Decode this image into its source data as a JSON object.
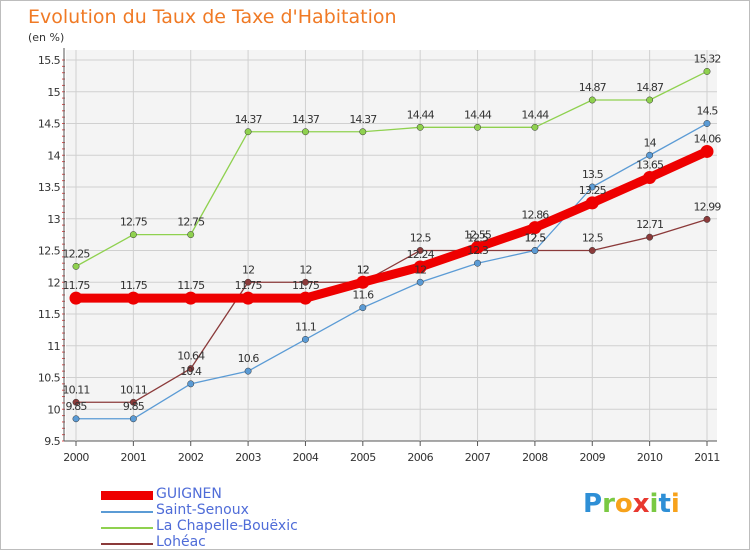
{
  "chart_data": {
    "type": "line",
    "title": "Evolution du Taux de Taxe d'Habitation",
    "subtitle": "(en %)",
    "x": [
      "2000",
      "2001",
      "2002",
      "2003",
      "2004",
      "2005",
      "2006",
      "2007",
      "2008",
      "2009",
      "2010",
      "2011"
    ],
    "ylim": [
      9.5,
      15.5
    ],
    "yticks": [
      "9.5",
      "10",
      "10.5",
      "11",
      "11.5",
      "12",
      "12.5",
      "13",
      "13.5",
      "14",
      "14.5",
      "15",
      "15.5"
    ],
    "grid": true,
    "legend_position": "bottom-left",
    "series": [
      {
        "name": "GUIGNEN",
        "color": "#ee0000",
        "values": [
          11.75,
          11.75,
          11.75,
          11.75,
          11.75,
          12,
          12.24,
          12.55,
          12.86,
          13.25,
          13.65,
          14.06
        ],
        "labels": [
          "11.75",
          "11.75",
          "11.75",
          "11.75",
          "11.75",
          "12",
          "12.24",
          "12.55",
          "12.86",
          "13.25",
          "13.65",
          "14.06"
        ]
      },
      {
        "name": "Saint-Senoux",
        "color": "#5b9bd5",
        "values": [
          9.85,
          9.85,
          10.4,
          10.6,
          11.1,
          11.6,
          12,
          12.3,
          12.5,
          13.5,
          14,
          14.5
        ],
        "labels": [
          "9.85",
          "9.85",
          "10.4",
          "10.6",
          "11.1",
          "11.6",
          "12",
          "12.3",
          "12.5",
          "13.5",
          "14",
          "14.5"
        ]
      },
      {
        "name": "La Chapelle-Bouëxic",
        "color": "#8fd14f",
        "values": [
          12.25,
          12.75,
          12.75,
          14.37,
          14.37,
          14.37,
          14.44,
          14.44,
          14.44,
          14.87,
          14.87,
          15.32
        ],
        "labels": [
          "12.25",
          "12.75",
          "12.75",
          "14.37",
          "14.37",
          "14.37",
          "14.44",
          "14.44",
          "14.44",
          "14.87",
          "14.87",
          "15.32"
        ]
      },
      {
        "name": "Lohéac",
        "color": "#8b3a3a",
        "values": [
          10.11,
          10.11,
          10.64,
          12,
          12,
          12,
          12.5,
          12.5,
          12.5,
          12.5,
          12.71,
          12.99
        ],
        "labels": [
          "10.11",
          "10.11",
          "10.64",
          "12",
          "12",
          "12",
          "12.5",
          "12.5",
          "12.5",
          "12.5",
          "12.71",
          "12.99"
        ]
      }
    ]
  },
  "brand": {
    "letters": [
      "P",
      "r",
      "o",
      "x",
      "i",
      "t",
      "i"
    ],
    "colors": [
      "#2e8fd6",
      "#7ac943",
      "#f7a21b",
      "#e8382f",
      "#7ac943",
      "#2e8fd6",
      "#f7a21b"
    ]
  }
}
